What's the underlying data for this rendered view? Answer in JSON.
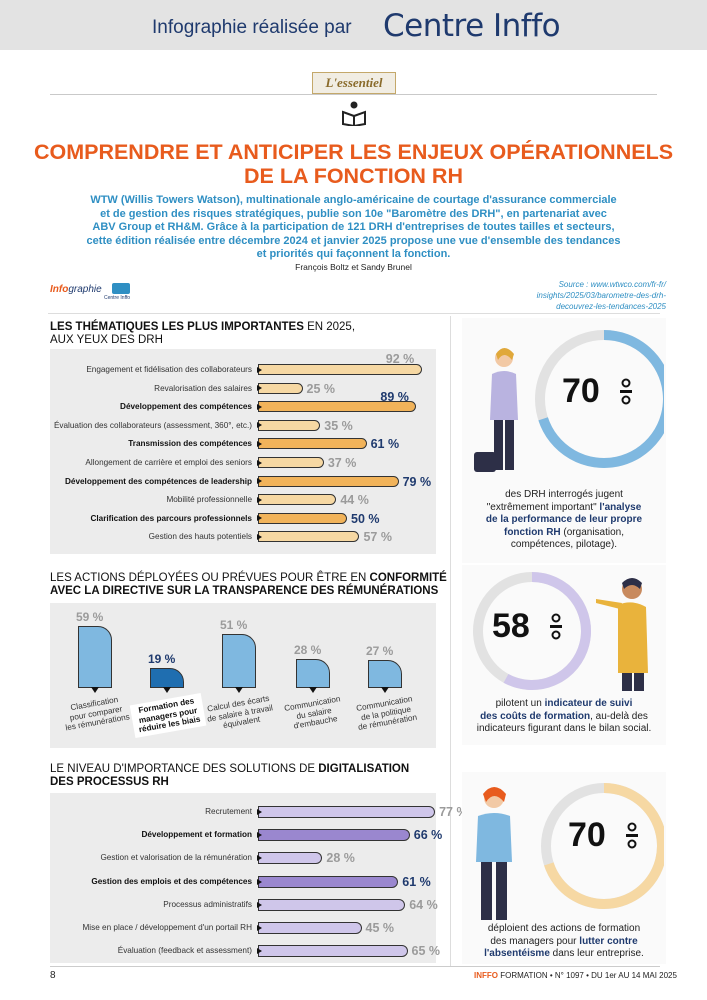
{
  "header": {
    "prefix": "Infographie réalisée par",
    "brand": "Centre Inffo"
  },
  "section_label": "L'essentiel",
  "title_line1": "COMPRENDRE ET ANTICIPER LES ENJEUX OPÉRATIONNELS",
  "title_line2": "DE LA FONCTION RH",
  "intro_lines": [
    "WTW (Willis Towers Watson), multinationale anglo-américaine de courtage d'assurance commerciale",
    "et de gestion des risques stratégiques, publie son 10e \"Baromètre des DRH\", en partenariat avec",
    "ABV Group et RH&M. Grâce à la participation de 121 DRH d'entreprises de toutes tailles et secteurs,",
    "cette édition réalisée entre décembre 2024 et janvier 2025 propose une vue d'ensemble des tendances",
    "et priorités qui façonnent la fonction."
  ],
  "authors": "François Boltz et Sandy Brunel",
  "infographie_label": "Info",
  "infographie_label2": "graphie",
  "infographie_sub": "Centre Inffo",
  "source_lines": [
    "Source : www.wtwco.com/fr-fr/",
    "insights/2025/03/barometre-des-drh-",
    "decouvrez-les-tendances-2025"
  ],
  "chart_data": [
    {
      "type": "bar",
      "title_bold": "LES THÉMATIQUES LES PLUS IMPORTANTES",
      "title_rest": " EN 2025,",
      "title_line2": "AUX YEUX DES DRH",
      "categories": [
        "Engagement et fidélisation des collaborateurs",
        "Revalorisation des salaires",
        "Développement des compétences",
        "Évaluation des collaborateurs (assessment, 360°, etc.)",
        "Transmission des compétences",
        "Allongement de carrière et emploi des seniors",
        "Développement des compétences de leadership",
        "Mobilité professionnelle",
        "Clarification des parcours professionnels",
        "Gestion des hauts potentiels"
      ],
      "values": [
        92,
        25,
        89,
        35,
        61,
        37,
        79,
        44,
        50,
        57
      ],
      "labels": [
        "92 %",
        "25 %",
        "89 %",
        "35 %",
        "61 %",
        "37 %",
        "79 %",
        "44 %",
        "50 %",
        "57 %"
      ],
      "emphasis": [
        false,
        false,
        true,
        false,
        true,
        false,
        true,
        false,
        true,
        false
      ],
      "colors": {
        "light": "#f6d8a3",
        "dark": "#f1b35a"
      }
    },
    {
      "type": "bar",
      "title_line1": "LES ACTIONS DÉPLOYÉES OU PRÉVUES POUR ÊTRE EN ",
      "title_line1_bold": "CONFORMITÉ",
      "title_line2": "AVEC LA DIRECTIVE SUR LA TRANSPARENCE DES RÉMUNÉRATIONS",
      "categories": [
        [
          "Classification",
          "pour comparer",
          "les rémunérations"
        ],
        [
          "Formation des",
          "managers pour",
          "réduire les biais"
        ],
        [
          "Calcul des écarts",
          "de salaire à travail",
          "équivalent"
        ],
        [
          "Communication",
          "du salaire",
          "d'embauche"
        ],
        [
          "Communication",
          "de la politique",
          "de rémunération"
        ]
      ],
      "values": [
        59,
        19,
        51,
        28,
        27
      ],
      "labels": [
        "59 %",
        "19 %",
        "51 %",
        "28 %",
        "27 %"
      ],
      "emphasis": [
        false,
        true,
        false,
        false,
        false
      ],
      "colors": {
        "light": "#7fb8e0",
        "dark": "#1f6eb0"
      }
    },
    {
      "type": "bar",
      "title_line1": "LE NIVEAU D'IMPORTANCE DES SOLUTIONS DE ",
      "title_line1_bold": "DIGITALISATION",
      "title_line2": "DES PROCESSUS RH",
      "categories": [
        "Recrutement",
        "Développement et formation",
        "Gestion et valorisation de la rémunération",
        "Gestion des emplois et des compétences",
        "Processus administratifs",
        "Mise en place / développement d'un portail RH",
        "Évaluation (feedback et assessment)"
      ],
      "values": [
        77,
        66,
        28,
        61,
        64,
        45,
        65
      ],
      "labels": [
        "77 %",
        "66 %",
        "28 %",
        "61 %",
        "64 %",
        "45 %",
        "65 %"
      ],
      "emphasis": [
        false,
        true,
        false,
        true,
        false,
        false,
        false
      ],
      "colors": {
        "light": "#cfc6ea",
        "dark": "#9a87cf"
      }
    }
  ],
  "stats": [
    {
      "value": 70,
      "value_label": "70",
      "ring_color": "#7fb8e0",
      "text_lines": [
        {
          "t": "des DRH interrogés jugent",
          "b": false
        },
        {
          "t": "\"extrêmement important\" ",
          "b": false,
          "t2": "l'analyse",
          "b2": true
        },
        {
          "t": "de la performance de leur propre",
          "b": true
        },
        {
          "t": "fonction RH",
          "b": true,
          "t2": " (organisation,",
          "b2": false
        },
        {
          "t": "compétences, pilotage).",
          "b": false
        }
      ]
    },
    {
      "value": 58,
      "value_label": "58",
      "ring_color": "#cfc6ea",
      "text_lines": [
        {
          "t": "pilotent un ",
          "b": false,
          "t2": "indicateur de suivi",
          "b2": true
        },
        {
          "t": "des coûts de formation",
          "b": true,
          "t2": ", au-delà des",
          "b2": false
        },
        {
          "t": "indicateurs figurant dans le bilan social.",
          "b": false
        }
      ]
    },
    {
      "value": 70,
      "value_label": "70",
      "ring_color": "#f6d8a3",
      "text_lines": [
        {
          "t": "déploient des actions de formation",
          "b": false
        },
        {
          "t": "des managers pour ",
          "b": false,
          "t2": "lutter contre",
          "b2": true
        },
        {
          "t": "l'absentéisme",
          "b": true,
          "t2": " dans leur entreprise.",
          "b2": false
        }
      ]
    }
  ],
  "footer": {
    "page": "8",
    "pub_bold": "INFFO",
    "pub_rest": " FORMATION • N° 1097 • DU 1er AU 14 MAI 2025"
  }
}
